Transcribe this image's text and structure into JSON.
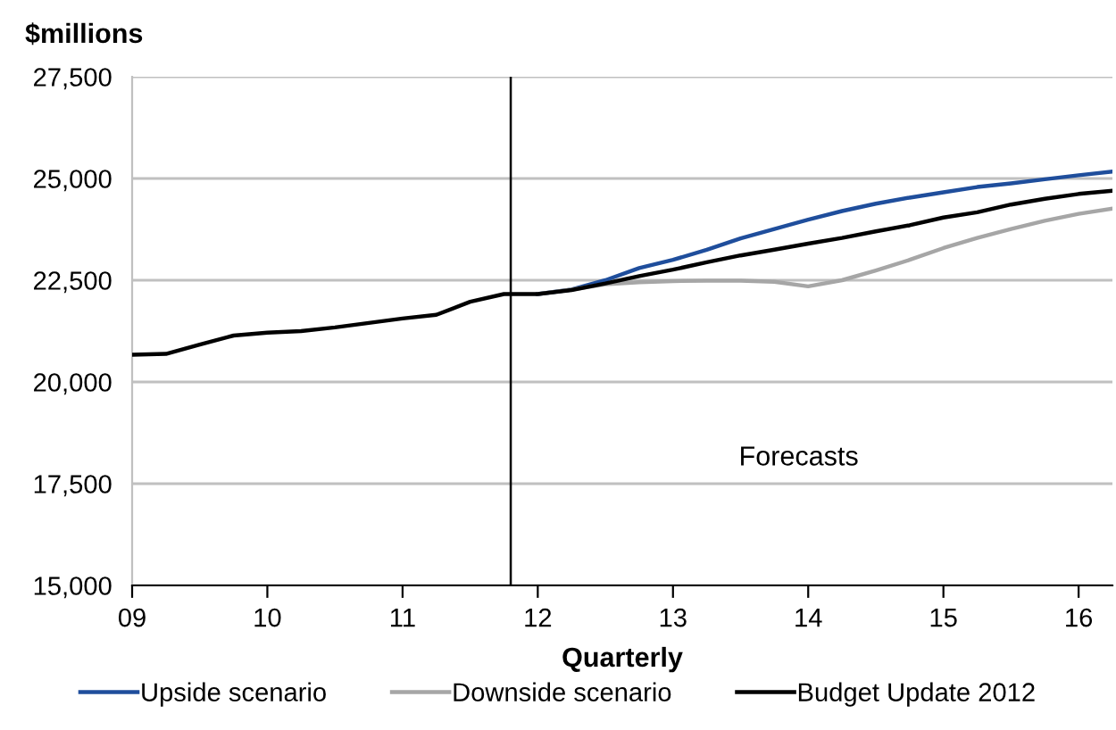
{
  "chart_data": {
    "type": "line",
    "ylabel": "$millions",
    "xlabel": "Quarterly",
    "xlim": [
      9,
      16.25
    ],
    "xticks": [
      {
        "value": 9,
        "label": "09"
      },
      {
        "value": 10,
        "label": "10"
      },
      {
        "value": 11,
        "label": "11"
      },
      {
        "value": 12,
        "label": "12"
      },
      {
        "value": 13,
        "label": "13"
      },
      {
        "value": 14,
        "label": "14"
      },
      {
        "value": 15,
        "label": "15"
      },
      {
        "value": 16,
        "label": "16"
      }
    ],
    "ylim": [
      15000,
      27500
    ],
    "yticks": [
      {
        "value": 15000,
        "label": "15,000"
      },
      {
        "value": 17500,
        "label": "17,500"
      },
      {
        "value": 20000,
        "label": "20,000"
      },
      {
        "value": 22500,
        "label": "22,500"
      },
      {
        "value": 25000,
        "label": "25,000"
      },
      {
        "value": 27500,
        "label": "27,500"
      }
    ],
    "grid": "y",
    "legend": "bottom",
    "marker": "none",
    "line_style": "solid",
    "ref_lines": [
      {
        "axis": "x",
        "value": 11.8,
        "color": "#000000"
      }
    ],
    "annotations": [
      "Forecasts"
    ],
    "series": [
      {
        "name": "Upside scenario",
        "color": "#1f4e9c",
        "x": [
          12,
          12.25,
          12.5,
          12.75,
          13,
          13.25,
          13.5,
          13.75,
          14,
          14.25,
          14.5,
          14.75,
          15,
          15.25,
          15.5,
          15.75,
          16,
          16.25
        ],
        "values": [
          22160,
          22270,
          22500,
          22800,
          23000,
          23250,
          23530,
          23760,
          23990,
          24200,
          24380,
          24530,
          24660,
          24790,
          24880,
          24980,
          25080,
          25170
        ]
      },
      {
        "name": "Downside scenario",
        "color": "#a6a6a6",
        "x": [
          12,
          12.25,
          12.5,
          12.75,
          13,
          13.25,
          13.5,
          13.75,
          14,
          14.25,
          14.5,
          14.75,
          15,
          15.25,
          15.5,
          15.75,
          16,
          16.25
        ],
        "values": [
          22160,
          22270,
          22400,
          22450,
          22480,
          22490,
          22490,
          22460,
          22350,
          22500,
          22740,
          23000,
          23290,
          23540,
          23760,
          23960,
          24130,
          24260
        ]
      },
      {
        "name": "Budget Update 2012",
        "color": "#000000",
        "x": [
          9,
          9.25,
          9.5,
          9.75,
          10,
          10.25,
          10.5,
          10.75,
          11,
          11.25,
          11.5,
          11.75,
          12,
          12.25,
          12.5,
          12.75,
          13,
          13.25,
          13.5,
          13.75,
          14,
          14.25,
          14.5,
          14.75,
          15,
          15.25,
          15.5,
          15.75,
          16,
          16.25
        ],
        "values": [
          20670,
          20690,
          20920,
          21140,
          21210,
          21250,
          21340,
          21450,
          21560,
          21650,
          21970,
          22160,
          22160,
          22260,
          22420,
          22600,
          22760,
          22940,
          23110,
          23250,
          23400,
          23540,
          23700,
          23850,
          24040,
          24170,
          24360,
          24500,
          24620,
          24700
        ]
      }
    ]
  }
}
